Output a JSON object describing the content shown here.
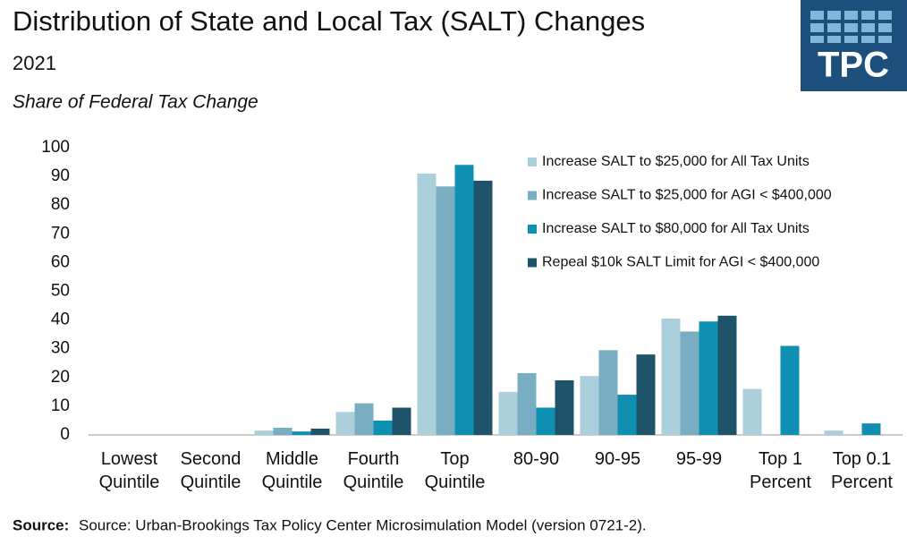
{
  "chart_data": {
    "type": "bar",
    "title": "Distribution of State and Local Tax (SALT) Changes",
    "subtitle": "2021",
    "y_label": "Share of Federal Tax Change",
    "categories": [
      "Lowest Quintile",
      "Second Quintile",
      "Middle Quintile",
      "Fourth Quintile",
      "Top Quintile",
      "80-90",
      "90-95",
      "95-99",
      "Top 1 Percent",
      "Top 0.1 Percent"
    ],
    "series": [
      {
        "name": "Increase SALT to $25,000 for All Tax Units",
        "color": "#abcfdb",
        "values": [
          0,
          0,
          1.5,
          8,
          91,
          15,
          20.5,
          40.5,
          16,
          1.5
        ]
      },
      {
        "name": "Increase SALT to $25,000 for AGI < $400,000",
        "color": "#79adc1",
        "values": [
          0,
          0,
          2.5,
          11,
          86.5,
          21.5,
          29.5,
          36,
          null,
          null
        ]
      },
      {
        "name": "Increase SALT to $80,000 for All Tax Units",
        "color": "#0f8fb2",
        "values": [
          0,
          0,
          1.2,
          5,
          94,
          9.5,
          14,
          39.5,
          31,
          4
        ]
      },
      {
        "name": "Repeal $10k SALT Limit for AGI < $400,000",
        "color": "#1e5369",
        "values": [
          0,
          0,
          2.2,
          9.5,
          88.5,
          19,
          28,
          41.5,
          null,
          null
        ]
      }
    ],
    "ylim": [
      0,
      100
    ],
    "yticks": [
      0,
      10,
      20,
      30,
      40,
      50,
      60,
      70,
      80,
      90,
      100
    ],
    "grid": false,
    "legend": "top-right",
    "source_label": "Source:",
    "source": "Source: Urban-Brookings Tax Policy Center Microsimulation Model (version 0721-2).",
    "logo": "TPC"
  }
}
